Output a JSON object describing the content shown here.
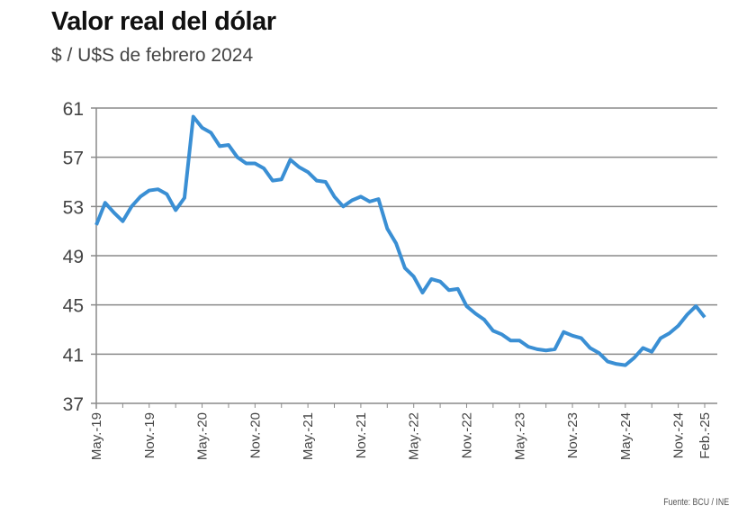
{
  "chart_data": {
    "type": "line",
    "title": "Valor real del dólar",
    "subtitle": "$ / U$S de febrero 2024",
    "source": "Fuente: BCU / INE",
    "xlabel": "",
    "ylabel": "",
    "ylim": [
      37,
      61
    ],
    "yticks": [
      37,
      41,
      45,
      49,
      53,
      57,
      61
    ],
    "grid": true,
    "x_start": "May-19",
    "x_end": "Feb-25",
    "xtick_labels": [
      {
        "label": "May.-19",
        "month_index": 0
      },
      {
        "label": "Nov.-19",
        "month_index": 6
      },
      {
        "label": "May.-20",
        "month_index": 12
      },
      {
        "label": "Nov.-20",
        "month_index": 18
      },
      {
        "label": "May.-21",
        "month_index": 24
      },
      {
        "label": "Nov.-21",
        "month_index": 30
      },
      {
        "label": "May.-22",
        "month_index": 36
      },
      {
        "label": "Nov.-22",
        "month_index": 42
      },
      {
        "label": "May.-23",
        "month_index": 48
      },
      {
        "label": "Nov.-23",
        "month_index": 54
      },
      {
        "label": "May.-24",
        "month_index": 60
      },
      {
        "label": "Nov.-24",
        "month_index": 66
      },
      {
        "label": "Feb.-25",
        "month_index": 69
      }
    ],
    "series": [
      {
        "name": "Valor real del dólar",
        "color": "#3a8fd4",
        "values": [
          51.5,
          53.3,
          52.5,
          51.8,
          53.0,
          53.8,
          54.3,
          54.4,
          54.0,
          52.7,
          53.7,
          60.3,
          59.4,
          59.0,
          57.9,
          58.0,
          57.0,
          56.5,
          56.5,
          56.1,
          55.1,
          55.2,
          56.8,
          56.2,
          55.8,
          55.1,
          55.0,
          53.8,
          53.0,
          53.5,
          53.8,
          53.4,
          53.6,
          51.2,
          50.0,
          48.0,
          47.3,
          46.0,
          47.1,
          46.9,
          46.2,
          46.3,
          44.9,
          44.3,
          43.8,
          42.9,
          42.6,
          42.1,
          42.1,
          41.6,
          41.4,
          41.3,
          41.4,
          42.8,
          42.5,
          42.3,
          41.5,
          41.1,
          40.4,
          40.2,
          40.1,
          40.7,
          41.5,
          41.2,
          42.3,
          42.7,
          43.3,
          44.2,
          44.9,
          44.0
        ]
      }
    ]
  }
}
